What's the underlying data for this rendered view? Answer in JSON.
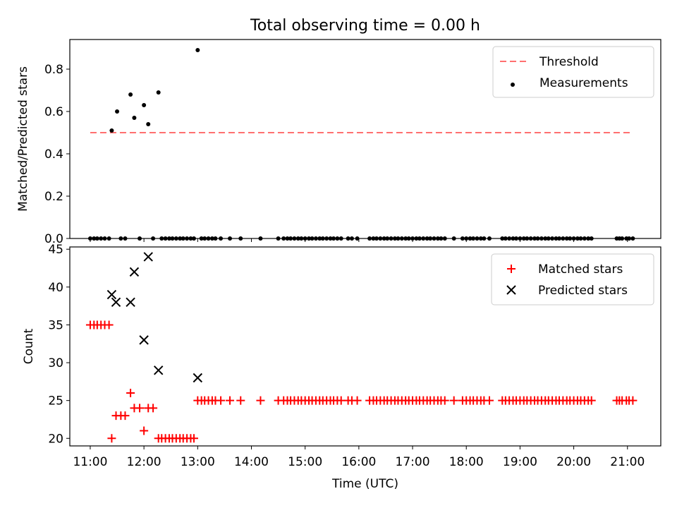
{
  "title": "Total observing time = 0.00 h",
  "chart_data": [
    {
      "type": "scatter",
      "ylabel": "Matched/Predicted stars",
      "xlim": [
        10.62,
        21.62
      ],
      "ylim": [
        0.0,
        0.94
      ],
      "yticks": [
        0.0,
        0.2,
        0.4,
        0.6,
        0.8
      ],
      "ytick_labels": [
        "0.0",
        "0.2",
        "0.4",
        "0.6",
        "0.8"
      ],
      "legend_position": "top-right",
      "threshold": {
        "name": "Threshold",
        "value": 0.5,
        "x_range": [
          11.0,
          21.08
        ],
        "color": "#ff7070",
        "style": "dashed"
      },
      "series": [
        {
          "name": "Measurements",
          "color": "#000000",
          "marker": "dot",
          "points": [
            [
              11.4,
              0.51
            ],
            [
              11.5,
              0.6
            ],
            [
              11.75,
              0.68
            ],
            [
              11.82,
              0.57
            ],
            [
              12.0,
              0.63
            ],
            [
              12.08,
              0.54
            ],
            [
              12.27,
              0.69
            ],
            [
              13.0,
              0.89
            ],
            [
              11.0,
              0
            ],
            [
              11.07,
              0
            ],
            [
              11.13,
              0
            ],
            [
              11.2,
              0
            ],
            [
              11.27,
              0
            ],
            [
              11.35,
              0
            ],
            [
              11.57,
              0
            ],
            [
              11.65,
              0
            ],
            [
              11.92,
              0
            ],
            [
              12.17,
              0
            ],
            [
              12.33,
              0
            ],
            [
              12.4,
              0
            ],
            [
              12.47,
              0
            ],
            [
              12.53,
              0
            ],
            [
              12.6,
              0
            ],
            [
              12.67,
              0
            ],
            [
              12.73,
              0
            ],
            [
              12.8,
              0
            ],
            [
              12.87,
              0
            ],
            [
              12.93,
              0
            ],
            [
              13.07,
              0
            ],
            [
              13.13,
              0
            ],
            [
              13.2,
              0
            ],
            [
              13.27,
              0
            ],
            [
              13.33,
              0
            ],
            [
              13.43,
              0
            ],
            [
              13.6,
              0
            ],
            [
              13.8,
              0
            ],
            [
              14.17,
              0
            ],
            [
              14.5,
              0
            ],
            [
              14.6,
              0
            ],
            [
              14.67,
              0
            ],
            [
              14.73,
              0
            ],
            [
              14.8,
              0
            ],
            [
              14.87,
              0
            ],
            [
              14.93,
              0
            ],
            [
              15.0,
              0
            ],
            [
              15.07,
              0
            ],
            [
              15.13,
              0
            ],
            [
              15.2,
              0
            ],
            [
              15.27,
              0
            ],
            [
              15.33,
              0
            ],
            [
              15.4,
              0
            ],
            [
              15.47,
              0
            ],
            [
              15.53,
              0
            ],
            [
              15.6,
              0
            ],
            [
              15.67,
              0
            ],
            [
              15.8,
              0
            ],
            [
              15.87,
              0
            ],
            [
              15.97,
              0
            ],
            [
              16.2,
              0
            ],
            [
              16.27,
              0
            ],
            [
              16.33,
              0
            ],
            [
              16.4,
              0
            ],
            [
              16.47,
              0
            ],
            [
              16.53,
              0
            ],
            [
              16.6,
              0
            ],
            [
              16.67,
              0
            ],
            [
              16.73,
              0
            ],
            [
              16.8,
              0
            ],
            [
              16.87,
              0
            ],
            [
              16.93,
              0
            ],
            [
              17.0,
              0
            ],
            [
              17.07,
              0
            ],
            [
              17.13,
              0
            ],
            [
              17.2,
              0
            ],
            [
              17.27,
              0
            ],
            [
              17.33,
              0
            ],
            [
              17.4,
              0
            ],
            [
              17.47,
              0
            ],
            [
              17.53,
              0
            ],
            [
              17.6,
              0
            ],
            [
              17.77,
              0
            ],
            [
              17.93,
              0
            ],
            [
              18.0,
              0
            ],
            [
              18.07,
              0
            ],
            [
              18.13,
              0
            ],
            [
              18.2,
              0
            ],
            [
              18.27,
              0
            ],
            [
              18.33,
              0
            ],
            [
              18.43,
              0
            ],
            [
              18.67,
              0
            ],
            [
              18.73,
              0
            ],
            [
              18.8,
              0
            ],
            [
              18.87,
              0
            ],
            [
              18.93,
              0
            ],
            [
              19.0,
              0
            ],
            [
              19.07,
              0
            ],
            [
              19.13,
              0
            ],
            [
              19.2,
              0
            ],
            [
              19.27,
              0
            ],
            [
              19.33,
              0
            ],
            [
              19.4,
              0
            ],
            [
              19.47,
              0
            ],
            [
              19.53,
              0
            ],
            [
              19.6,
              0
            ],
            [
              19.67,
              0
            ],
            [
              19.73,
              0
            ],
            [
              19.8,
              0
            ],
            [
              19.87,
              0
            ],
            [
              19.93,
              0
            ],
            [
              20.0,
              0
            ],
            [
              20.07,
              0
            ],
            [
              20.13,
              0
            ],
            [
              20.2,
              0
            ],
            [
              20.27,
              0
            ],
            [
              20.33,
              0
            ],
            [
              20.8,
              0
            ],
            [
              20.85,
              0
            ],
            [
              20.9,
              0
            ],
            [
              20.98,
              0
            ],
            [
              21.03,
              0
            ],
            [
              21.1,
              0
            ]
          ]
        }
      ]
    },
    {
      "type": "scatter",
      "xlabel": "Time (UTC)",
      "ylabel": "Count",
      "xlim": [
        10.62,
        21.62
      ],
      "ylim": [
        19.0,
        45.3
      ],
      "xticks": [
        11,
        12,
        13,
        14,
        15,
        16,
        17,
        18,
        19,
        20,
        21
      ],
      "xtick_labels": [
        "11:00",
        "12:00",
        "13:00",
        "14:00",
        "15:00",
        "16:00",
        "17:00",
        "18:00",
        "19:00",
        "20:00",
        "21:00"
      ],
      "yticks": [
        20,
        25,
        30,
        35,
        40,
        45
      ],
      "ytick_labels": [
        "20",
        "25",
        "30",
        "35",
        "40",
        "45"
      ],
      "legend_position": "top-right",
      "series": [
        {
          "name": "Matched stars",
          "color": "#ff0000",
          "marker": "plus",
          "points": [
            [
              11.0,
              35
            ],
            [
              11.07,
              35
            ],
            [
              11.13,
              35
            ],
            [
              11.2,
              35
            ],
            [
              11.27,
              35
            ],
            [
              11.35,
              35
            ],
            [
              11.4,
              20
            ],
            [
              11.48,
              23
            ],
            [
              11.57,
              23
            ],
            [
              11.65,
              23
            ],
            [
              11.75,
              26
            ],
            [
              11.82,
              24
            ],
            [
              11.92,
              24
            ],
            [
              12.0,
              21
            ],
            [
              12.08,
              24
            ],
            [
              12.17,
              24
            ],
            [
              12.27,
              20
            ],
            [
              12.33,
              20
            ],
            [
              12.4,
              20
            ],
            [
              12.47,
              20
            ],
            [
              12.53,
              20
            ],
            [
              12.6,
              20
            ],
            [
              12.67,
              20
            ],
            [
              12.73,
              20
            ],
            [
              12.8,
              20
            ],
            [
              12.87,
              20
            ],
            [
              12.93,
              20
            ],
            [
              13.0,
              25
            ],
            [
              13.07,
              25
            ],
            [
              13.13,
              25
            ],
            [
              13.2,
              25
            ],
            [
              13.27,
              25
            ],
            [
              13.33,
              25
            ],
            [
              13.43,
              25
            ],
            [
              13.6,
              25
            ],
            [
              13.8,
              25
            ],
            [
              14.17,
              25
            ],
            [
              14.5,
              25
            ],
            [
              14.6,
              25
            ],
            [
              14.67,
              25
            ],
            [
              14.73,
              25
            ],
            [
              14.8,
              25
            ],
            [
              14.87,
              25
            ],
            [
              14.93,
              25
            ],
            [
              15.0,
              25
            ],
            [
              15.07,
              25
            ],
            [
              15.13,
              25
            ],
            [
              15.2,
              25
            ],
            [
              15.27,
              25
            ],
            [
              15.33,
              25
            ],
            [
              15.4,
              25
            ],
            [
              15.47,
              25
            ],
            [
              15.53,
              25
            ],
            [
              15.6,
              25
            ],
            [
              15.67,
              25
            ],
            [
              15.8,
              25
            ],
            [
              15.87,
              25
            ],
            [
              15.97,
              25
            ],
            [
              16.2,
              25
            ],
            [
              16.27,
              25
            ],
            [
              16.33,
              25
            ],
            [
              16.4,
              25
            ],
            [
              16.47,
              25
            ],
            [
              16.53,
              25
            ],
            [
              16.6,
              25
            ],
            [
              16.67,
              25
            ],
            [
              16.73,
              25
            ],
            [
              16.8,
              25
            ],
            [
              16.87,
              25
            ],
            [
              16.93,
              25
            ],
            [
              17.0,
              25
            ],
            [
              17.07,
              25
            ],
            [
              17.13,
              25
            ],
            [
              17.2,
              25
            ],
            [
              17.27,
              25
            ],
            [
              17.33,
              25
            ],
            [
              17.4,
              25
            ],
            [
              17.47,
              25
            ],
            [
              17.53,
              25
            ],
            [
              17.6,
              25
            ],
            [
              17.77,
              25
            ],
            [
              17.93,
              25
            ],
            [
              18.0,
              25
            ],
            [
              18.07,
              25
            ],
            [
              18.13,
              25
            ],
            [
              18.2,
              25
            ],
            [
              18.27,
              25
            ],
            [
              18.33,
              25
            ],
            [
              18.43,
              25
            ],
            [
              18.67,
              25
            ],
            [
              18.73,
              25
            ],
            [
              18.8,
              25
            ],
            [
              18.87,
              25
            ],
            [
              18.93,
              25
            ],
            [
              19.0,
              25
            ],
            [
              19.07,
              25
            ],
            [
              19.13,
              25
            ],
            [
              19.2,
              25
            ],
            [
              19.27,
              25
            ],
            [
              19.33,
              25
            ],
            [
              19.4,
              25
            ],
            [
              19.47,
              25
            ],
            [
              19.53,
              25
            ],
            [
              19.6,
              25
            ],
            [
              19.67,
              25
            ],
            [
              19.73,
              25
            ],
            [
              19.8,
              25
            ],
            [
              19.87,
              25
            ],
            [
              19.93,
              25
            ],
            [
              20.0,
              25
            ],
            [
              20.07,
              25
            ],
            [
              20.13,
              25
            ],
            [
              20.2,
              25
            ],
            [
              20.27,
              25
            ],
            [
              20.33,
              25
            ],
            [
              20.8,
              25
            ],
            [
              20.85,
              25
            ],
            [
              20.9,
              25
            ],
            [
              20.98,
              25
            ],
            [
              21.03,
              25
            ],
            [
              21.1,
              25
            ]
          ]
        },
        {
          "name": "Predicted stars",
          "color": "#000000",
          "marker": "cross",
          "points": [
            [
              11.4,
              39
            ],
            [
              11.48,
              38
            ],
            [
              11.75,
              38
            ],
            [
              11.82,
              42
            ],
            [
              12.0,
              33
            ],
            [
              12.08,
              44
            ],
            [
              12.27,
              29
            ],
            [
              13.0,
              28
            ]
          ]
        }
      ]
    }
  ]
}
